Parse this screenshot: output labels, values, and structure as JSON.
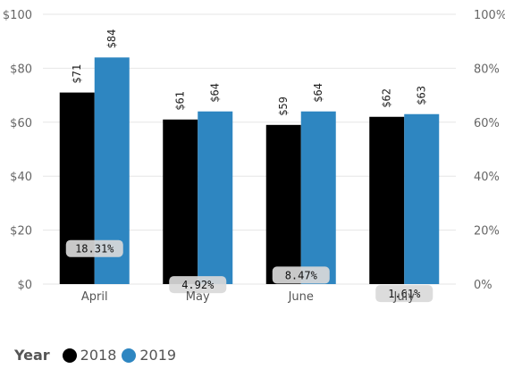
{
  "chart_data": {
    "type": "bar",
    "categories": [
      "April",
      "May",
      "June",
      "July"
    ],
    "series": [
      {
        "name": "2018",
        "values": [
          71,
          61,
          59,
          62
        ],
        "labels": [
          "$71",
          "$61",
          "$59",
          "$62"
        ]
      },
      {
        "name": "2019",
        "values": [
          84,
          64,
          64,
          63
        ],
        "labels": [
          "$84",
          "$64",
          "$64",
          "$63"
        ]
      }
    ],
    "ylim": [
      0,
      100
    ],
    "y_ticks": [
      "$0",
      "$20",
      "$40",
      "$60",
      "$80",
      "$100"
    ],
    "y2lim": [
      0,
      1
    ],
    "y2_ticks": [
      "0%",
      "20%",
      "40%",
      "60%",
      "80%",
      "100%"
    ],
    "pct_change": {
      "values": [
        0.1831,
        0.0492,
        0.0847,
        0.0161
      ],
      "labels": [
        "18.31%",
        "4.92%",
        "8.47%",
        "1.61%"
      ]
    },
    "grid": true,
    "legend": {
      "title": "Year",
      "position": "bottom-left"
    }
  },
  "colors": {
    "series_2018": "#000000",
    "series_2019": "#2e86c1",
    "grid": "#e6e6e6",
    "pct_label_bg": "#d9d9d9"
  }
}
